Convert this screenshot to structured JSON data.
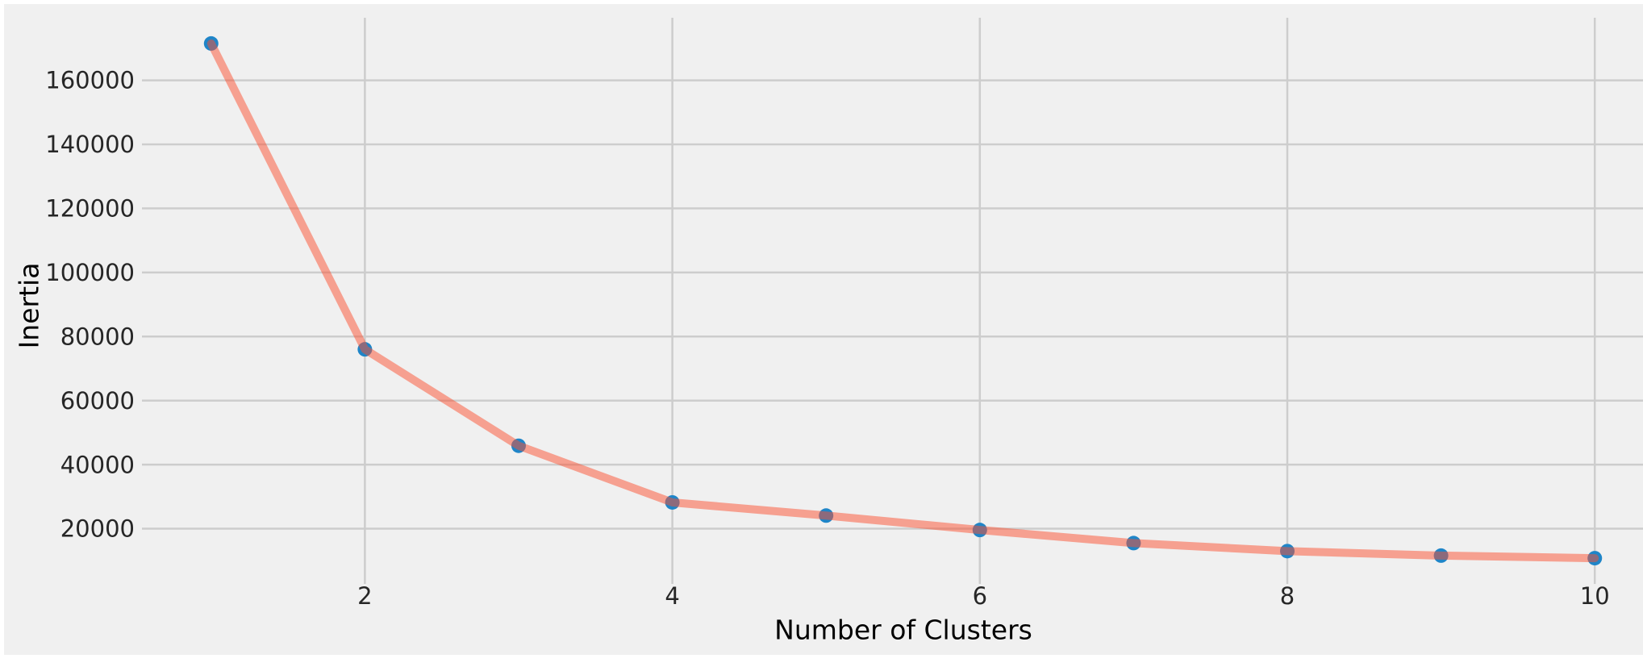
{
  "chart_data": {
    "type": "line",
    "title": "",
    "xlabel": "Number of Clusters",
    "ylabel": "Inertia",
    "x": [
      1,
      2,
      3,
      4,
      5,
      6,
      7,
      8,
      9,
      10
    ],
    "series": [
      {
        "name": "Inertia",
        "values": [
          171500,
          76000,
          45900,
          28200,
          24100,
          19600,
          15500,
          13000,
          11600,
          10800
        ]
      }
    ],
    "xticks": [
      2,
      4,
      6,
      8,
      10
    ],
    "xtick_labels": [
      "2",
      "4",
      "6",
      "8",
      "10"
    ],
    "yticks": [
      20000,
      40000,
      60000,
      80000,
      100000,
      120000,
      140000,
      160000
    ],
    "ytick_labels": [
      "20000",
      "40000",
      "60000",
      "80000",
      "100000",
      "120000",
      "140000",
      "160000"
    ],
    "xlim": [
      0.55,
      10.45
    ],
    "ylim": [
      2765,
      179535
    ],
    "grid": true,
    "legend": "none",
    "style": {
      "page_background": "#ffffff",
      "figure_background": "#f0f0f0",
      "grid_color": "#cdcdcd",
      "line_color": "#fc4f30",
      "line_alpha": 0.5,
      "marker_color": "#1f85c8",
      "tick_label_color": "#262626",
      "axis_label_color": "#000000"
    }
  }
}
